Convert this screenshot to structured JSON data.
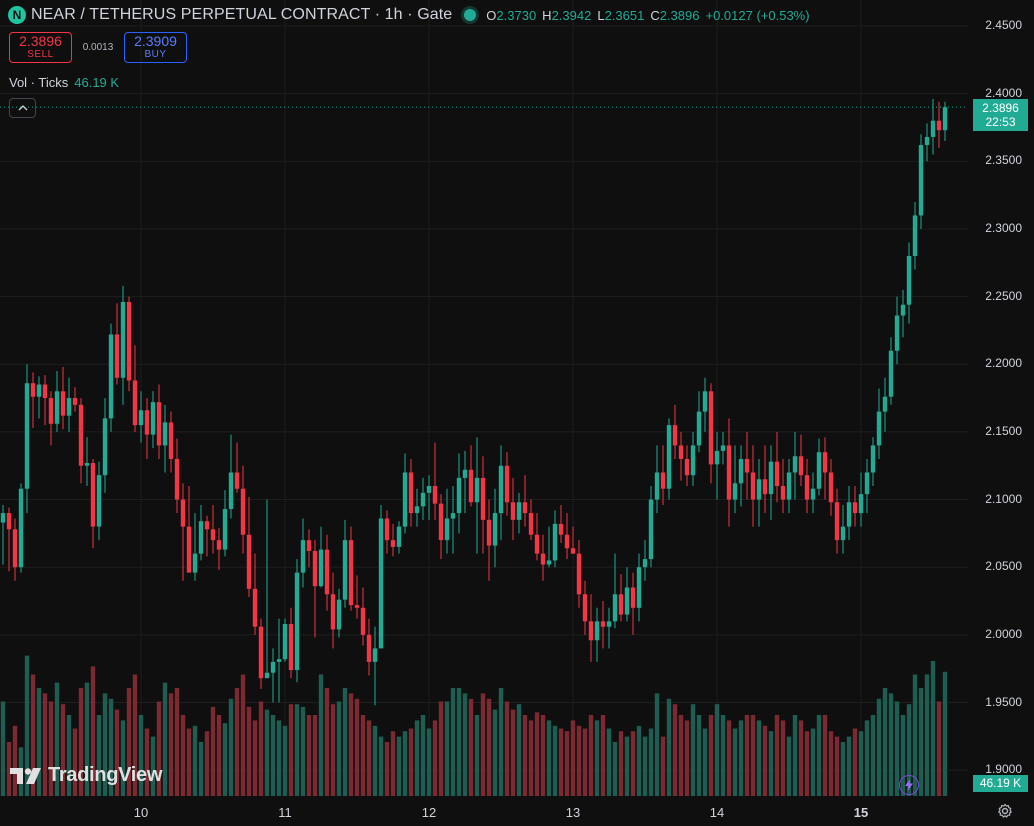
{
  "header": {
    "symbol_icon": "N",
    "title": "NEAR / TETHERUS PERPETUAL CONTRACT · 1h · Gate",
    "o_label": "O",
    "o_value": "2.3730",
    "h_label": "H",
    "h_value": "2.3942",
    "l_label": "L",
    "l_value": "2.3651",
    "c_label": "C",
    "c_value": "2.3896",
    "change": "+0.0127 (+0.53%)"
  },
  "trade": {
    "sell_price": "2.3896",
    "sell_label": "SELL",
    "spread": "0.0013",
    "buy_price": "2.3909",
    "buy_label": "BUY"
  },
  "volume_legend": {
    "label": "Vol · Ticks",
    "value": "46.19 K"
  },
  "price_axis": {
    "ticks": [
      "2.4500",
      "2.4000",
      "2.3500",
      "2.3000",
      "2.2500",
      "2.2000",
      "2.1500",
      "2.1000",
      "2.0500",
      "2.0000",
      "1.9500",
      "1.9000"
    ],
    "current_price": "2.3896",
    "countdown": "22:53",
    "current_volume": "46.19 K"
  },
  "time_axis": {
    "ticks": [
      "10",
      "11",
      "12",
      "13",
      "14",
      "15"
    ]
  },
  "branding": {
    "logo_text": "TradingView"
  },
  "colors": {
    "up": "#22ab94",
    "down": "#f23645",
    "up_vol": "#1d5d52",
    "down_vol": "#7a2a30",
    "background": "#0f0f0f"
  },
  "icons": [
    "near-logo-icon",
    "collapse-chevron-icon",
    "tradingview-logo-icon",
    "lightning-icon",
    "settings-gear-icon"
  ],
  "chart_data": {
    "type": "candlestick",
    "title": "NEAR / TETHERUS PERPETUAL CONTRACT · 1h · Gate",
    "xlabel": "",
    "ylabel": "",
    "ylim": [
      1.9,
      2.45
    ],
    "x_ticks": [
      "10",
      "11",
      "12",
      "13",
      "14",
      "15"
    ],
    "y_ticks": [
      2.45,
      2.4,
      2.35,
      2.3,
      2.25,
      2.2,
      2.15,
      2.1,
      2.05,
      2.0,
      1.95,
      1.9
    ],
    "grid": true,
    "candles": {
      "fields": [
        "open",
        "high",
        "low",
        "close",
        "volume"
      ],
      "rows": [
        [
          2.083,
          2.096,
          2.052,
          2.09,
          0.35
        ],
        [
          2.09,
          2.094,
          2.047,
          2.078,
          0.2
        ],
        [
          2.078,
          2.086,
          2.04,
          2.05,
          0.26
        ],
        [
          2.05,
          2.112,
          2.046,
          2.108,
          0.18
        ],
        [
          2.108,
          2.2,
          2.09,
          2.186,
          0.52
        ],
        [
          2.186,
          2.194,
          2.153,
          2.176,
          0.45
        ],
        [
          2.176,
          2.191,
          2.16,
          2.185,
          0.4
        ],
        [
          2.185,
          2.192,
          2.155,
          2.175,
          0.38
        ],
        [
          2.175,
          2.18,
          2.14,
          2.156,
          0.35
        ],
        [
          2.156,
          2.195,
          2.15,
          2.18,
          0.42
        ],
        [
          2.18,
          2.198,
          2.152,
          2.162,
          0.34
        ],
        [
          2.162,
          2.19,
          2.15,
          2.175,
          0.3
        ],
        [
          2.175,
          2.183,
          2.165,
          2.17,
          0.25
        ],
        [
          2.17,
          2.175,
          2.112,
          2.125,
          0.4
        ],
        [
          2.125,
          2.146,
          2.11,
          2.127,
          0.42
        ],
        [
          2.127,
          2.13,
          2.064,
          2.08,
          0.48
        ],
        [
          2.08,
          2.128,
          2.07,
          2.118,
          0.3
        ],
        [
          2.118,
          2.175,
          2.105,
          2.16,
          0.38
        ],
        [
          2.16,
          2.23,
          2.15,
          2.222,
          0.36
        ],
        [
          2.222,
          2.245,
          2.185,
          2.19,
          0.32
        ],
        [
          2.19,
          2.258,
          2.17,
          2.246,
          0.28
        ],
        [
          2.246,
          2.25,
          2.18,
          2.188,
          0.4
        ],
        [
          2.188,
          2.214,
          2.15,
          2.155,
          0.45
        ],
        [
          2.155,
          2.18,
          2.142,
          2.166,
          0.3
        ],
        [
          2.166,
          2.175,
          2.13,
          2.148,
          0.25
        ],
        [
          2.148,
          2.18,
          2.138,
          2.172,
          0.22
        ],
        [
          2.172,
          2.185,
          2.13,
          2.14,
          0.35
        ],
        [
          2.14,
          2.17,
          2.12,
          2.157,
          0.42
        ],
        [
          2.157,
          2.165,
          2.12,
          2.13,
          0.38
        ],
        [
          2.13,
          2.145,
          2.09,
          2.1,
          0.4
        ],
        [
          2.1,
          2.112,
          2.04,
          2.08,
          0.3
        ],
        [
          2.08,
          2.11,
          2.046,
          2.046,
          0.25
        ],
        [
          2.046,
          2.09,
          2.04,
          2.06,
          0.26
        ],
        [
          2.06,
          2.096,
          2.055,
          2.084,
          0.2
        ],
        [
          2.084,
          2.088,
          2.058,
          2.078,
          0.24
        ],
        [
          2.078,
          2.096,
          2.06,
          2.07,
          0.33
        ],
        [
          2.07,
          2.079,
          2.048,
          2.063,
          0.3
        ],
        [
          2.063,
          2.107,
          2.058,
          2.093,
          0.27
        ],
        [
          2.093,
          2.148,
          2.086,
          2.12,
          0.36
        ],
        [
          2.12,
          2.142,
          2.105,
          2.108,
          0.4
        ],
        [
          2.108,
          2.125,
          2.06,
          2.074,
          0.45
        ],
        [
          2.074,
          2.102,
          2.028,
          2.034,
          0.33
        ],
        [
          2.034,
          2.06,
          2.0,
          2.006,
          0.28
        ],
        [
          2.006,
          2.012,
          1.96,
          1.968,
          0.35
        ],
        [
          1.968,
          2.1,
          1.968,
          1.972,
          0.32
        ],
        [
          1.972,
          1.99,
          1.95,
          1.98,
          0.3
        ],
        [
          1.98,
          2.012,
          1.95,
          1.982,
          0.28
        ],
        [
          1.982,
          2.012,
          1.98,
          2.008,
          0.26
        ],
        [
          2.008,
          2.02,
          1.968,
          1.974,
          0.34
        ],
        [
          1.974,
          2.056,
          1.965,
          2.046,
          0.34
        ],
        [
          2.046,
          2.086,
          2.035,
          2.07,
          0.33
        ],
        [
          2.07,
          2.078,
          2.05,
          2.062,
          0.3
        ],
        [
          2.062,
          2.07,
          1.998,
          2.036,
          0.3
        ],
        [
          2.036,
          2.08,
          2.035,
          2.063,
          0.45
        ],
        [
          2.063,
          2.074,
          2.018,
          2.03,
          0.4
        ],
        [
          2.03,
          2.046,
          1.99,
          2.004,
          0.34
        ],
        [
          2.004,
          2.034,
          1.998,
          2.026,
          0.35
        ],
        [
          2.026,
          2.085,
          2.02,
          2.07,
          0.4
        ],
        [
          2.07,
          2.08,
          2.018,
          2.022,
          0.38
        ],
        [
          2.022,
          2.044,
          2.012,
          2.02,
          0.36
        ],
        [
          2.02,
          2.035,
          1.992,
          2.0,
          0.3
        ],
        [
          2.0,
          2.012,
          1.97,
          1.98,
          0.28
        ],
        [
          1.98,
          2.006,
          1.948,
          1.99,
          0.26
        ],
        [
          1.99,
          2.096,
          1.99,
          2.086,
          0.22
        ],
        [
          2.086,
          2.092,
          2.06,
          2.07,
          0.2
        ],
        [
          2.07,
          2.082,
          2.058,
          2.065,
          0.24
        ],
        [
          2.065,
          2.084,
          2.06,
          2.08,
          0.22
        ],
        [
          2.08,
          2.134,
          2.075,
          2.12,
          0.24
        ],
        [
          2.12,
          2.13,
          2.08,
          2.09,
          0.25
        ],
        [
          2.09,
          2.108,
          2.08,
          2.095,
          0.28
        ],
        [
          2.095,
          2.116,
          2.085,
          2.105,
          0.3
        ],
        [
          2.105,
          2.118,
          2.085,
          2.11,
          0.25
        ],
        [
          2.11,
          2.142,
          2.085,
          2.097,
          0.28
        ],
        [
          2.097,
          2.104,
          2.056,
          2.07,
          0.35
        ],
        [
          2.07,
          2.108,
          2.06,
          2.086,
          0.35
        ],
        [
          2.086,
          2.11,
          2.06,
          2.09,
          0.4
        ],
        [
          2.09,
          2.134,
          2.075,
          2.116,
          0.4
        ],
        [
          2.116,
          2.136,
          2.09,
          2.122,
          0.38
        ],
        [
          2.122,
          2.14,
          2.095,
          2.098,
          0.36
        ],
        [
          2.098,
          2.146,
          2.06,
          2.116,
          0.3
        ],
        [
          2.116,
          2.132,
          2.06,
          2.085,
          0.38
        ],
        [
          2.085,
          2.1,
          2.04,
          2.066,
          0.36
        ],
        [
          2.066,
          2.108,
          2.05,
          2.09,
          0.32
        ],
        [
          2.09,
          2.14,
          2.07,
          2.125,
          0.4
        ],
        [
          2.125,
          2.135,
          2.088,
          2.098,
          0.35
        ],
        [
          2.098,
          2.116,
          2.07,
          2.085,
          0.32
        ],
        [
          2.085,
          2.105,
          2.075,
          2.098,
          0.34
        ],
        [
          2.098,
          2.118,
          2.08,
          2.09,
          0.3
        ],
        [
          2.09,
          2.1,
          2.07,
          2.074,
          0.28
        ],
        [
          2.074,
          2.09,
          2.055,
          2.06,
          0.31
        ],
        [
          2.06,
          2.074,
          2.04,
          2.052,
          0.3
        ],
        [
          2.052,
          2.08,
          2.05,
          2.055,
          0.28
        ],
        [
          2.055,
          2.092,
          2.05,
          2.082,
          0.26
        ],
        [
          2.082,
          2.096,
          2.068,
          2.074,
          0.25
        ],
        [
          2.074,
          2.09,
          2.056,
          2.064,
          0.24
        ],
        [
          2.064,
          2.08,
          2.06,
          2.06,
          0.28
        ],
        [
          2.06,
          2.07,
          2.02,
          2.03,
          0.26
        ],
        [
          2.03,
          2.04,
          2.0,
          2.01,
          0.25
        ],
        [
          2.01,
          2.03,
          1.98,
          1.996,
          0.3
        ],
        [
          1.996,
          2.02,
          1.98,
          2.01,
          0.28
        ],
        [
          2.01,
          2.025,
          1.99,
          2.006,
          0.3
        ],
        [
          2.006,
          2.02,
          1.99,
          2.01,
          0.25
        ],
        [
          2.01,
          2.06,
          2.005,
          2.03,
          0.2
        ],
        [
          2.03,
          2.045,
          2.01,
          2.015,
          0.24
        ],
        [
          2.015,
          2.05,
          2.01,
          2.035,
          0.22
        ],
        [
          2.035,
          2.046,
          2.0,
          2.02,
          0.24
        ],
        [
          2.02,
          2.06,
          2.01,
          2.05,
          0.26
        ],
        [
          2.05,
          2.07,
          2.04,
          2.056,
          0.22
        ],
        [
          2.056,
          2.11,
          2.05,
          2.1,
          0.25
        ],
        [
          2.1,
          2.14,
          2.09,
          2.12,
          0.38
        ],
        [
          2.12,
          2.14,
          2.096,
          2.108,
          0.22
        ],
        [
          2.108,
          2.16,
          2.1,
          2.155,
          0.36
        ],
        [
          2.155,
          2.17,
          2.13,
          2.14,
          0.34
        ],
        [
          2.14,
          2.15,
          2.114,
          2.13,
          0.3
        ],
        [
          2.13,
          2.14,
          2.11,
          2.118,
          0.28
        ],
        [
          2.118,
          2.15,
          2.11,
          2.14,
          0.34
        ],
        [
          2.14,
          2.18,
          2.135,
          2.165,
          0.3
        ],
        [
          2.165,
          2.19,
          2.15,
          2.18,
          0.25
        ],
        [
          2.18,
          2.186,
          2.112,
          2.126,
          0.3
        ],
        [
          2.126,
          2.15,
          2.1,
          2.136,
          0.34
        ],
        [
          2.136,
          2.15,
          2.126,
          2.14,
          0.3
        ],
        [
          2.14,
          2.16,
          2.08,
          2.1,
          0.28
        ],
        [
          2.1,
          2.14,
          2.09,
          2.112,
          0.25
        ],
        [
          2.112,
          2.14,
          2.095,
          2.13,
          0.28
        ],
        [
          2.13,
          2.15,
          2.1,
          2.12,
          0.3
        ],
        [
          2.12,
          2.14,
          2.08,
          2.1,
          0.3
        ],
        [
          2.1,
          2.13,
          2.08,
          2.115,
          0.28
        ],
        [
          2.115,
          2.14,
          2.09,
          2.104,
          0.26
        ],
        [
          2.104,
          2.14,
          2.085,
          2.128,
          0.24
        ],
        [
          2.128,
          2.15,
          2.098,
          2.11,
          0.3
        ],
        [
          2.11,
          2.13,
          2.09,
          2.1,
          0.28
        ],
        [
          2.1,
          2.13,
          2.09,
          2.12,
          0.22
        ],
        [
          2.12,
          2.15,
          2.1,
          2.132,
          0.3
        ],
        [
          2.132,
          2.148,
          2.11,
          2.118,
          0.28
        ],
        [
          2.118,
          2.13,
          2.09,
          2.1,
          0.24
        ],
        [
          2.1,
          2.12,
          2.09,
          2.108,
          0.25
        ],
        [
          2.108,
          2.145,
          2.103,
          2.135,
          0.3
        ],
        [
          2.135,
          2.146,
          2.1,
          2.12,
          0.3
        ],
        [
          2.12,
          2.13,
          2.088,
          2.098,
          0.24
        ],
        [
          2.098,
          2.108,
          2.06,
          2.07,
          0.22
        ],
        [
          2.07,
          2.096,
          2.06,
          2.08,
          0.2
        ],
        [
          2.08,
          2.11,
          2.07,
          2.098,
          0.22
        ],
        [
          2.098,
          2.11,
          2.08,
          2.09,
          0.25
        ],
        [
          2.09,
          2.12,
          2.08,
          2.104,
          0.24
        ],
        [
          2.104,
          2.13,
          2.09,
          2.12,
          0.28
        ],
        [
          2.12,
          2.146,
          2.11,
          2.14,
          0.3
        ],
        [
          2.14,
          2.182,
          2.13,
          2.165,
          0.36
        ],
        [
          2.165,
          2.19,
          2.15,
          2.176,
          0.4
        ],
        [
          2.176,
          2.22,
          2.17,
          2.21,
          0.38
        ],
        [
          2.21,
          2.25,
          2.2,
          2.236,
          0.35
        ],
        [
          2.236,
          2.255,
          2.22,
          2.244,
          0.3
        ],
        [
          2.244,
          2.29,
          2.23,
          2.28,
          0.34
        ],
        [
          2.28,
          2.32,
          2.27,
          2.31,
          0.45
        ],
        [
          2.31,
          2.37,
          2.3,
          2.362,
          0.4
        ],
        [
          2.362,
          2.378,
          2.35,
          2.368,
          0.45
        ],
        [
          2.368,
          2.396,
          2.355,
          2.38,
          0.5
        ],
        [
          2.38,
          2.394,
          2.36,
          2.373,
          0.35
        ],
        [
          2.373,
          2.394,
          2.365,
          2.39,
          0.46
        ]
      ]
    }
  }
}
